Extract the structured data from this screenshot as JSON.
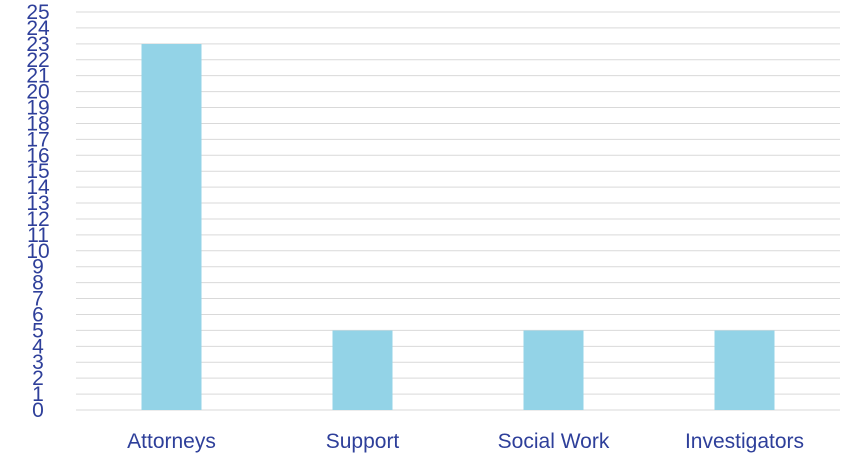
{
  "chart_data": {
    "type": "bar",
    "categories": [
      "Attorneys",
      "Support",
      "Social Work",
      "Investigators"
    ],
    "values": [
      23,
      5,
      5,
      5
    ],
    "title": "",
    "xlabel": "",
    "ylabel": "",
    "ylim": [
      0,
      25
    ],
    "ytick_step": 1,
    "grid": true,
    "legend": "none"
  },
  "colors": {
    "bar": "#93d3e7",
    "grid": "#d9d9d9",
    "text": "#2e3f9a"
  }
}
